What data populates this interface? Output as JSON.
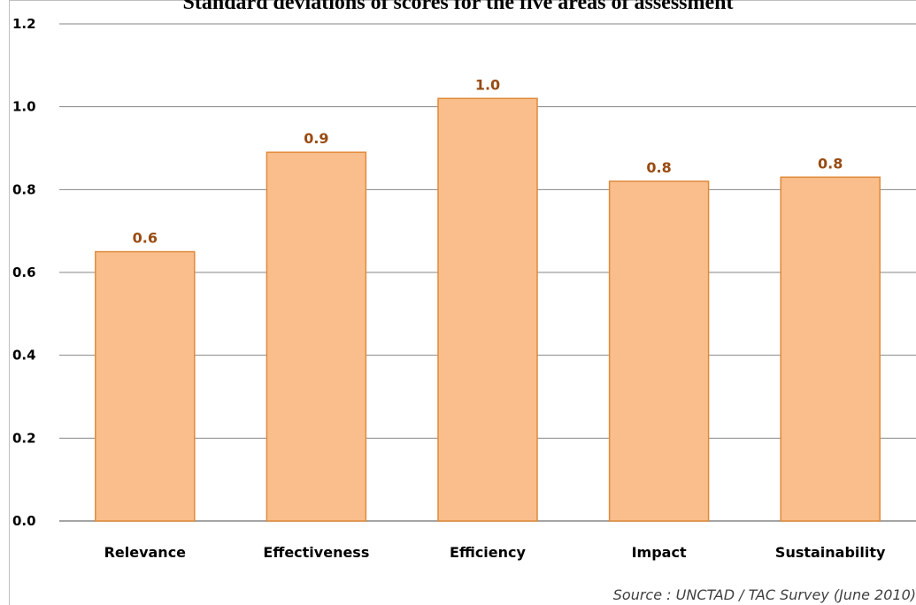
{
  "chart_data": {
    "type": "bar",
    "title": "Standard deviations of scores for the five areas of assessment",
    "categories": [
      "Relevance",
      "Effectiveness",
      "Efficiency",
      "Impact",
      "Sustainability"
    ],
    "values": [
      0.65,
      0.89,
      1.02,
      0.82,
      0.83
    ],
    "data_labels": [
      "0.6",
      "0.9",
      "1.0",
      "0.8",
      "0.8"
    ],
    "yticks": [
      "0.0",
      "0.2",
      "0.4",
      "0.6",
      "0.8",
      "1.0",
      "1.2"
    ],
    "ylim": [
      0,
      1.2
    ],
    "xlabel": "",
    "ylabel": "",
    "grid": true,
    "legend": "none",
    "bar_color": "#F9BE8C",
    "bar_border_color": "#E08A3A",
    "data_label_color": "#984B12",
    "gridline_color": "#868686"
  },
  "source": "Source : UNCTAD / TAC Survey (June 2010)"
}
